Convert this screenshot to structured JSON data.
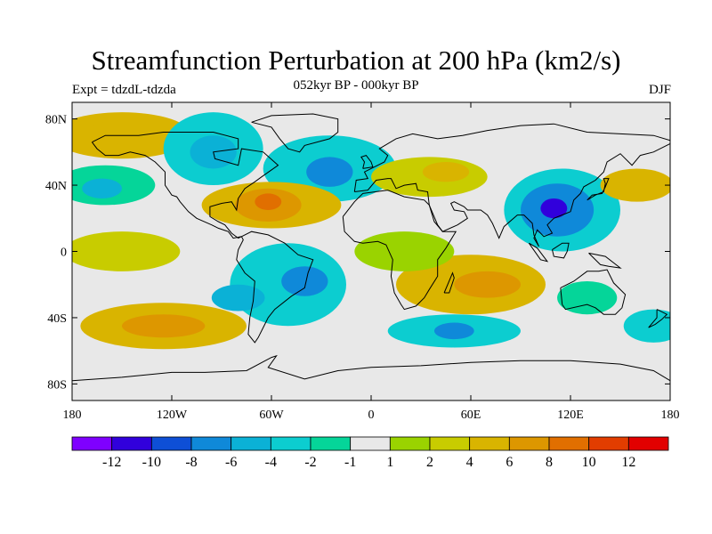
{
  "title": "Streamfunction Perturbation at 200 hPa (km2/s)",
  "subtitle": "052kyr BP - 000kyr BP",
  "left_label": "Expt = tdzdL-tdzda",
  "right_label": "DJF",
  "colors": {
    "background_band": "#e8e8e8",
    "scale": [
      "#7f00ff",
      "#3100dc",
      "#0e4fd6",
      "#0f89d9",
      "#0bb1d6",
      "#0ccdd0",
      "#05d599",
      "#e8e8e8",
      "#9ad300",
      "#c8cc00",
      "#d9b400",
      "#dd9700",
      "#e16f00",
      "#e23d00",
      "#e20000"
    ]
  },
  "map": {
    "projection": "cylindrical-equidistant",
    "lon_range": [
      -180,
      180
    ],
    "lat_range": [
      -90,
      90
    ],
    "x_ticks": [
      "180",
      "120W",
      "60W",
      "0",
      "60E",
      "120E",
      "180"
    ],
    "y_ticks": [
      "80N",
      "40N",
      "0",
      "40S",
      "80S"
    ],
    "anomalies": [
      {
        "name": "arctic-pacific-high",
        "lon": -150,
        "lat": 70,
        "rx": 42,
        "ry": 14,
        "cls": 4
      },
      {
        "name": "arctic-pacific-core",
        "lon": -150,
        "lat": 72,
        "rx": 22,
        "ry": 7,
        "cls": 5
      },
      {
        "name": "canada-low",
        "lon": -95,
        "lat": 62,
        "rx": 30,
        "ry": 22,
        "cls": -3
      },
      {
        "name": "canada-low-core",
        "lon": -95,
        "lat": 60,
        "rx": 14,
        "ry": 10,
        "cls": -4
      },
      {
        "name": "north-atlantic-low",
        "lon": -25,
        "lat": 50,
        "rx": 40,
        "ry": 20,
        "cls": -3
      },
      {
        "name": "north-atlantic-low-core",
        "lon": -25,
        "lat": 48,
        "rx": 14,
        "ry": 9,
        "cls": -5
      },
      {
        "name": "east-pacific-low",
        "lon": -160,
        "lat": 40,
        "rx": 30,
        "ry": 12,
        "cls": -2
      },
      {
        "name": "east-pacific-low-core",
        "lon": -162,
        "lat": 38,
        "rx": 12,
        "ry": 6,
        "cls": -4
      },
      {
        "name": "subtropical-atlantic-high",
        "lon": -60,
        "lat": 28,
        "rx": 42,
        "ry": 14,
        "cls": 4
      },
      {
        "name": "subtropical-atlantic-core",
        "lon": -62,
        "lat": 28,
        "rx": 20,
        "ry": 10,
        "cls": 6
      },
      {
        "name": "subtropical-atlantic-center",
        "lon": -62,
        "lat": 30,
        "rx": 8,
        "ry": 5,
        "cls": 8
      },
      {
        "name": "eurasia-high",
        "lon": 35,
        "lat": 45,
        "rx": 35,
        "ry": 12,
        "cls": 2
      },
      {
        "name": "mediterranean-high",
        "lon": 45,
        "lat": 48,
        "rx": 14,
        "ry": 6,
        "cls": 4
      },
      {
        "name": "east-asia-low",
        "lon": 115,
        "lat": 25,
        "rx": 35,
        "ry": 25,
        "cls": -3
      },
      {
        "name": "east-asia-low-mid",
        "lon": 112,
        "lat": 25,
        "rx": 22,
        "ry": 16,
        "cls": -5
      },
      {
        "name": "east-asia-low-core",
        "lon": 110,
        "lat": 26,
        "rx": 8,
        "ry": 6,
        "cls": -8
      },
      {
        "name": "north-pacific-high",
        "lon": 160,
        "lat": 40,
        "rx": 22,
        "ry": 10,
        "cls": 4
      },
      {
        "name": "south-america-low",
        "lon": -50,
        "lat": -20,
        "rx": 35,
        "ry": 25,
        "cls": -3
      },
      {
        "name": "south-america-low-core",
        "lon": -40,
        "lat": -18,
        "rx": 14,
        "ry": 9,
        "cls": -5
      },
      {
        "name": "south-atlantic-low",
        "lon": -80,
        "lat": -28,
        "rx": 16,
        "ry": 8,
        "cls": -4
      },
      {
        "name": "south-pacific-high",
        "lon": -125,
        "lat": -45,
        "rx": 50,
        "ry": 14,
        "cls": 4
      },
      {
        "name": "south-pacific-high-core",
        "lon": -125,
        "lat": -45,
        "rx": 25,
        "ry": 7,
        "cls": 6
      },
      {
        "name": "south-indian-high",
        "lon": 60,
        "lat": -20,
        "rx": 45,
        "ry": 18,
        "cls": 4
      },
      {
        "name": "south-indian-high-core",
        "lon": 70,
        "lat": -20,
        "rx": 20,
        "ry": 8,
        "cls": 6
      },
      {
        "name": "southern-ocean-low",
        "lon": 50,
        "lat": -48,
        "rx": 40,
        "ry": 10,
        "cls": -3
      },
      {
        "name": "southern-ocean-low-core",
        "lon": 50,
        "lat": -48,
        "rx": 12,
        "ry": 5,
        "cls": -5
      },
      {
        "name": "australia-low",
        "lon": 130,
        "lat": -28,
        "rx": 18,
        "ry": 10,
        "cls": -2
      },
      {
        "name": "sw-pacific-low",
        "lon": 170,
        "lat": -45,
        "rx": 18,
        "ry": 10,
        "cls": -3
      },
      {
        "name": "equatorial-pacific-high",
        "lon": -150,
        "lat": 0,
        "rx": 35,
        "ry": 12,
        "cls": 2
      },
      {
        "name": "equatorial-africa-high",
        "lon": 20,
        "lat": 0,
        "rx": 30,
        "ry": 12,
        "cls": 1
      }
    ]
  },
  "colorbar": {
    "labels": [
      "-12",
      "-10",
      "-8",
      "-6",
      "-4",
      "-2",
      "-1",
      "1",
      "2",
      "4",
      "6",
      "8",
      "10",
      "12"
    ]
  }
}
